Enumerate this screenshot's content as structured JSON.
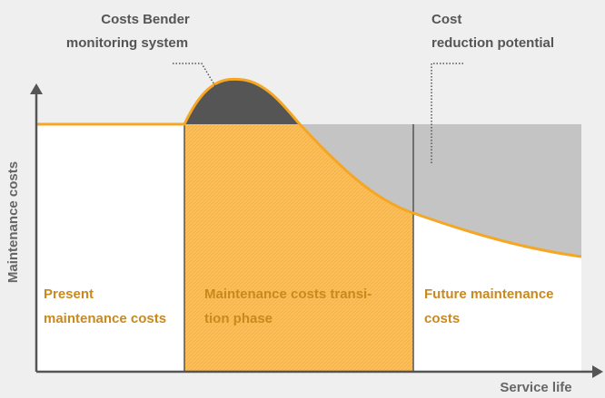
{
  "diagram": {
    "annotations": [
      {
        "lines": [
          "Costs Bender",
          "monitoring system"
        ]
      },
      {
        "lines": [
          "Cost",
          "reduction potential"
        ]
      }
    ],
    "y_axis_label": "Maintenance costs",
    "x_axis_label": "Service life",
    "phases": [
      {
        "lines": [
          "Present",
          "maintenance costs"
        ]
      },
      {
        "lines": [
          "Maintenance costs transi-",
          "tion phase"
        ]
      },
      {
        "lines": [
          "Future maintenance",
          "costs"
        ]
      }
    ]
  }
}
